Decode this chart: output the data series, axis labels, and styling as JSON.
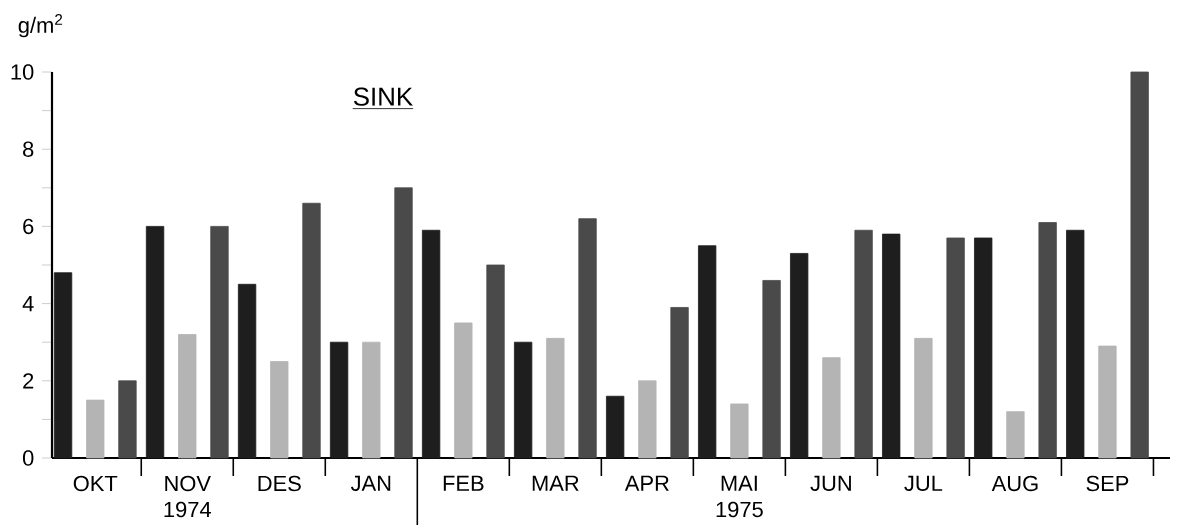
{
  "chart_data": {
    "type": "bar",
    "title": "SINK",
    "ylabel": "g/m$^{2}$",
    "categories": [
      "OKT",
      "NOV",
      "DES",
      "JAN",
      "FEB",
      "MAR",
      "APR",
      "MAI",
      "JUN",
      "JUL",
      "AUG",
      "SEP"
    ],
    "series": [
      {
        "color": "#1e1e1e",
        "values": [
          4.8,
          6.0,
          4.5,
          3.0,
          5.9,
          3.0,
          1.6,
          5.5,
          5.3,
          5.8,
          5.7,
          5.9
        ]
      },
      {
        "color": "#b4b4b4",
        "values": [
          1.5,
          3.2,
          2.5,
          3.0,
          3.5,
          3.1,
          2.0,
          1.4,
          2.6,
          3.1,
          1.2,
          2.9
        ]
      },
      {
        "color": "#4a4a4a",
        "values": [
          2.0,
          6.0,
          6.6,
          7.0,
          5.0,
          6.2,
          3.9,
          4.6,
          5.9,
          5.7,
          6.1,
          10.0
        ]
      }
    ],
    "ylim": [
      0,
      10
    ],
    "yticks": [
      0,
      {
        "value": 1,
        "label": null
      },
      2,
      {
        "value": 3,
        "label": null
      },
      4,
      {
        "value": 5,
        "label": null
      },
      6,
      {
        "value": 7,
        "label": null
      },
      8,
      {
        "value": 9,
        "label": null
      },
      10
    ],
    "annotations": [
      "1974",
      "1975"
    ]
  }
}
